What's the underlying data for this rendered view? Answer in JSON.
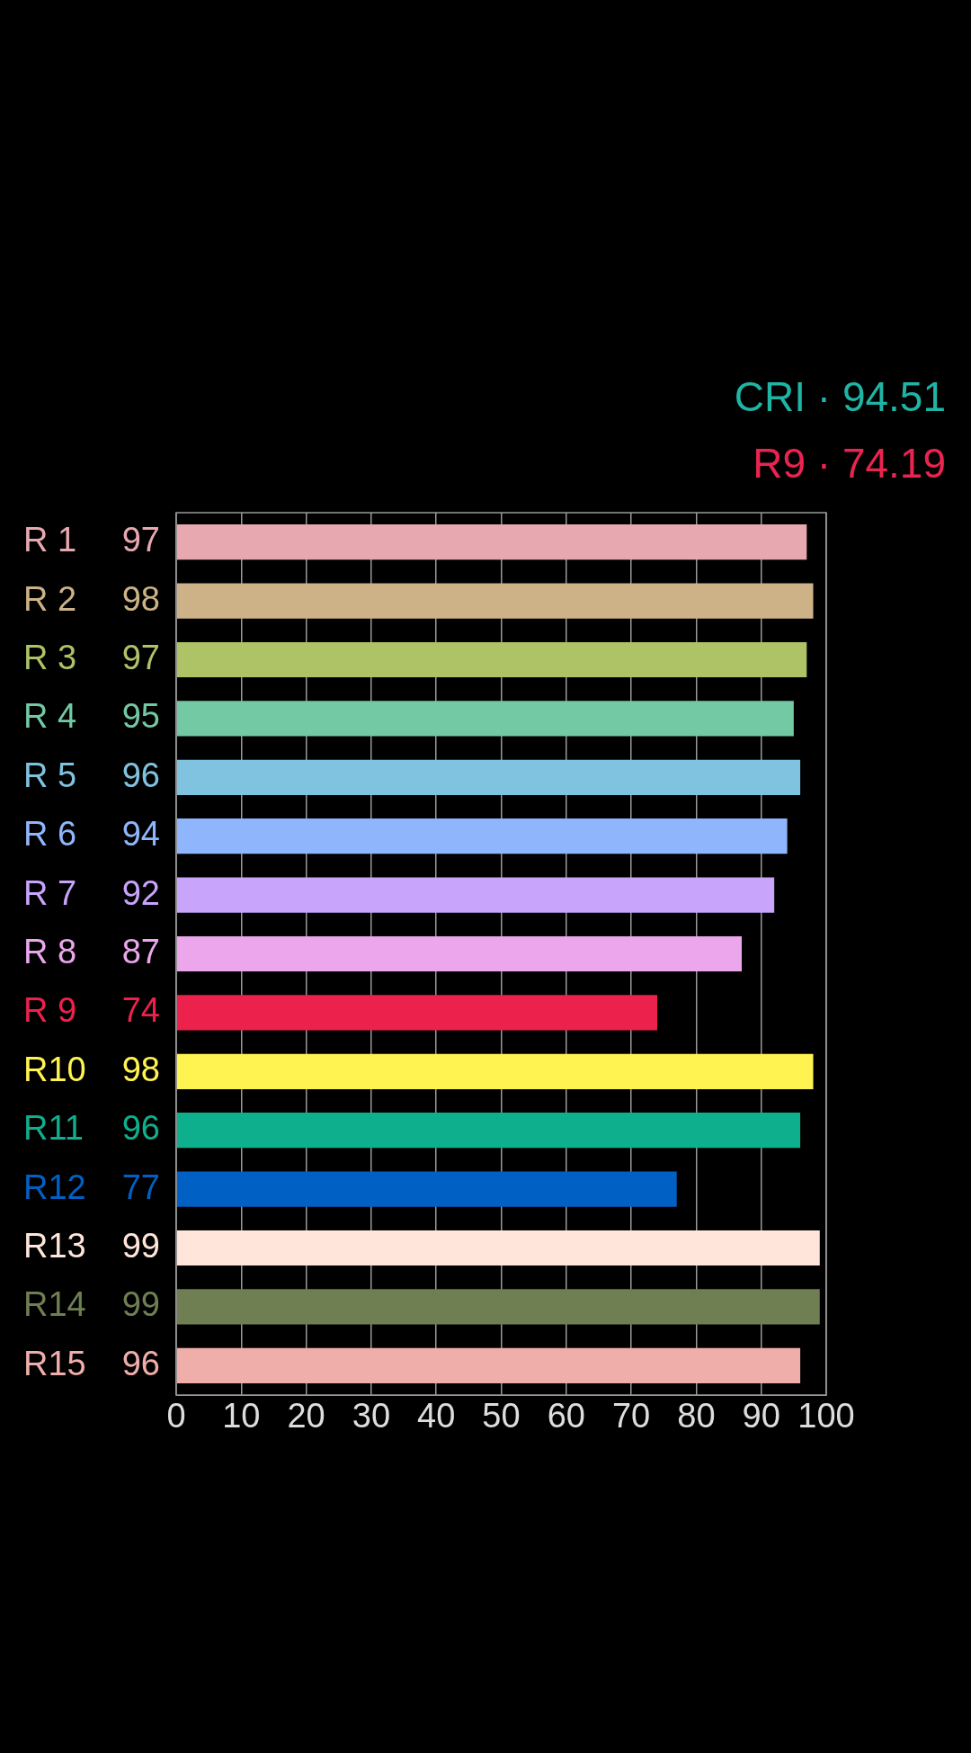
{
  "chart_data": {
    "type": "bar",
    "orientation": "horizontal",
    "categories": [
      "R 1",
      "R 2",
      "R 3",
      "R 4",
      "R 5",
      "R 6",
      "R 7",
      "R 8",
      "R 9",
      "R10",
      "R11",
      "R12",
      "R13",
      "R14",
      "R15"
    ],
    "values": [
      97,
      98,
      97,
      95,
      96,
      94,
      92,
      87,
      74,
      98,
      96,
      77,
      99,
      99,
      96
    ],
    "colors": [
      "#e8a8b0",
      "#ccb286",
      "#adc366",
      "#72c9a4",
      "#80c3e0",
      "#8fb5fc",
      "#c9a4fb",
      "#eba6ec",
      "#ec214c",
      "#fff352",
      "#0eaf8d",
      "#0060c4",
      "#ffe5da",
      "#6f7f52",
      "#efaeaa"
    ],
    "xlim": [
      0,
      100
    ],
    "xticks": [
      0,
      10,
      20,
      30,
      40,
      50,
      60,
      70,
      80,
      90,
      100
    ],
    "grid": "x",
    "data_labels": true,
    "legend": false,
    "annotations": [
      "CRI · 94.51",
      "R9 · 74.19"
    ]
  }
}
